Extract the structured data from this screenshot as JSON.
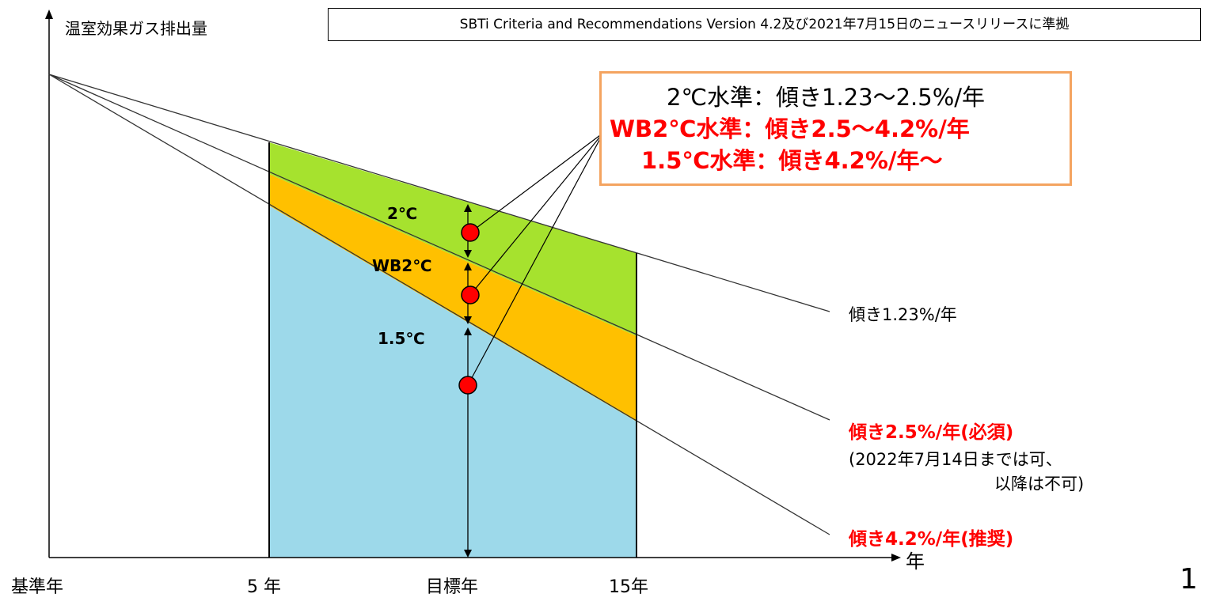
{
  "axes": {
    "y_label": "温室効果ガス排出量",
    "x_label": "年",
    "x_ticks": [
      "基準年",
      "5 年",
      "目標年",
      "15年"
    ]
  },
  "source_note": "SBTi Criteria and Recommendations Version 4.2及び2021年7月15日のニュースリリースに準拠",
  "slope_box": {
    "line1": "2℃水準：傾き1.23〜2.5%/年",
    "line2": "WB2℃水準：傾き2.5〜4.2%/年",
    "line3": "1.5℃水準：傾き4.2%/年〜"
  },
  "zones": {
    "z2": "2℃",
    "wb2": "WB2℃",
    "z15": "1.5℃"
  },
  "line_labels": {
    "slope_123": "傾き1.23%/年",
    "slope_25": "傾き2.5%/年(必須)",
    "slope_25_note1": "(2022年7月14日までは可、",
    "slope_25_note2": "以降は不可)",
    "slope_42": "傾き4.2%/年(推奨)"
  },
  "page_number": "1",
  "colors": {
    "zone_2c": "#a6e22e",
    "zone_wb2c": "#ffc000",
    "zone_15c": "#9dd9ea",
    "accent_red": "#ff0000",
    "box_border": "#f4a460"
  }
}
